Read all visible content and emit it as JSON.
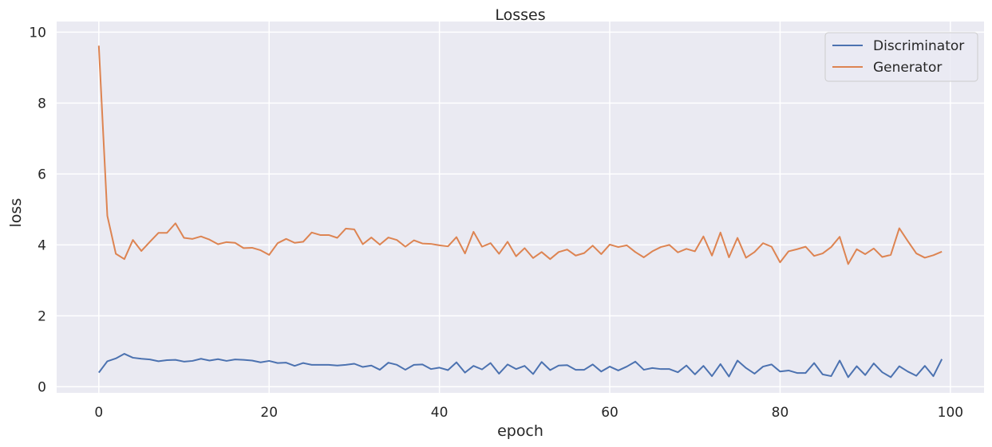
{
  "chart_data": {
    "type": "line",
    "title": "Losses",
    "xlabel": "epoch",
    "ylabel": "loss",
    "xlim": [
      -4.95,
      103.95
    ],
    "ylim": [
      -0.17,
      10.3
    ],
    "xticks": [
      0,
      20,
      40,
      60,
      80,
      100
    ],
    "yticks": [
      0,
      2,
      4,
      6,
      8,
      10
    ],
    "grid": true,
    "legend_position": "top-right",
    "colors": {
      "background": "#eaeaf2",
      "grid": "#ffffff",
      "discriminator": "#4c72b0",
      "generator": "#dd8452"
    },
    "series": [
      {
        "name": "Discriminator",
        "color": "#4c72b0",
        "values": [
          0.4,
          0.72,
          0.8,
          0.93,
          0.82,
          0.79,
          0.77,
          0.72,
          0.75,
          0.76,
          0.71,
          0.73,
          0.79,
          0.74,
          0.78,
          0.73,
          0.77,
          0.76,
          0.74,
          0.69,
          0.73,
          0.67,
          0.68,
          0.59,
          0.67,
          0.62,
          0.62,
          0.62,
          0.6,
          0.62,
          0.65,
          0.56,
          0.6,
          0.48,
          0.68,
          0.62,
          0.48,
          0.62,
          0.63,
          0.5,
          0.54,
          0.47,
          0.69,
          0.4,
          0.59,
          0.49,
          0.67,
          0.37,
          0.63,
          0.5,
          0.59,
          0.36,
          0.7,
          0.47,
          0.6,
          0.61,
          0.48,
          0.48,
          0.63,
          0.43,
          0.57,
          0.46,
          0.57,
          0.71,
          0.48,
          0.53,
          0.5,
          0.5,
          0.41,
          0.6,
          0.35,
          0.59,
          0.3,
          0.64,
          0.29,
          0.74,
          0.53,
          0.37,
          0.57,
          0.63,
          0.43,
          0.46,
          0.39,
          0.39,
          0.67,
          0.35,
          0.3,
          0.74,
          0.27,
          0.58,
          0.33,
          0.66,
          0.41,
          0.27,
          0.58,
          0.43,
          0.31,
          0.59,
          0.3,
          0.78
        ]
      },
      {
        "name": "Generator",
        "color": "#dd8452",
        "values": [
          9.62,
          4.82,
          3.75,
          3.6,
          4.14,
          3.83,
          4.09,
          4.34,
          4.34,
          4.61,
          4.2,
          4.17,
          4.24,
          4.15,
          4.02,
          4.08,
          4.06,
          3.91,
          3.92,
          3.85,
          3.72,
          4.05,
          4.17,
          4.06,
          4.09,
          4.35,
          4.28,
          4.28,
          4.2,
          4.46,
          4.44,
          4.02,
          4.21,
          4.01,
          4.21,
          4.14,
          3.95,
          4.13,
          4.04,
          4.03,
          3.99,
          3.96,
          4.22,
          3.76,
          4.37,
          3.95,
          4.05,
          3.75,
          4.09,
          3.68,
          3.91,
          3.63,
          3.8,
          3.6,
          3.8,
          3.87,
          3.7,
          3.77,
          3.98,
          3.74,
          4.01,
          3.94,
          3.99,
          3.8,
          3.65,
          3.82,
          3.94,
          4.0,
          3.79,
          3.89,
          3.82,
          4.24,
          3.7,
          4.35,
          3.65,
          4.2,
          3.64,
          3.8,
          4.05,
          3.95,
          3.51,
          3.82,
          3.88,
          3.95,
          3.69,
          3.76,
          3.94,
          4.23,
          3.46,
          3.88,
          3.74,
          3.9,
          3.66,
          3.72,
          4.47,
          4.11,
          3.76,
          3.64,
          3.71,
          3.81
        ]
      }
    ]
  }
}
